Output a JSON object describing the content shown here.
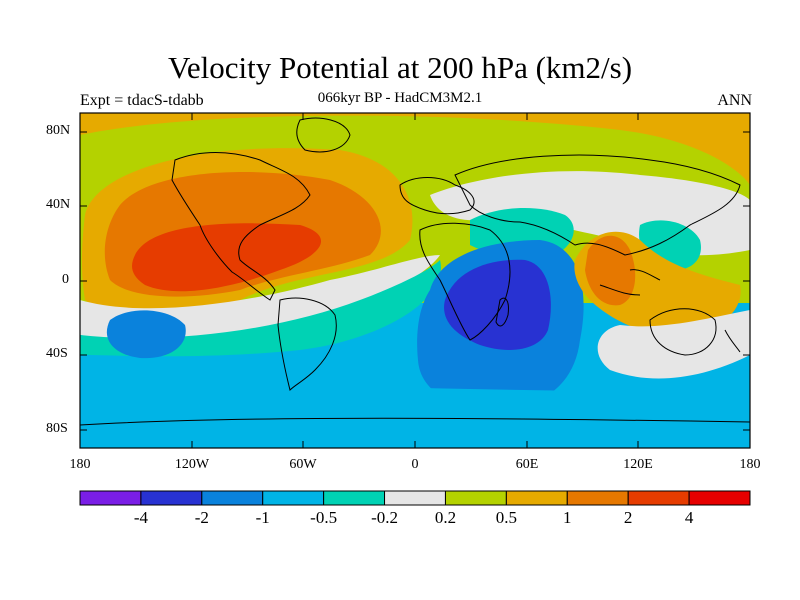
{
  "header": {
    "title": "Velocity Potential at 200 hPa (km2/s)",
    "experiment": "Expt = tdacS-tdabb",
    "subtitle": "066kyr BP - HadCM3M2.1",
    "season": "ANN"
  },
  "axes": {
    "lat_ticks": [
      "80N",
      "40N",
      "0",
      "40S",
      "80S"
    ],
    "lon_ticks": [
      "180",
      "120W",
      "60W",
      "0",
      "60E",
      "120E",
      "180"
    ]
  },
  "colorbar": {
    "colors": [
      "#7a1ee6",
      "#2832d2",
      "#0a82dc",
      "#00b4e6",
      "#00d2b4",
      "#e6e6e6",
      "#b4d200",
      "#e6aa00",
      "#e67800",
      "#e63c00",
      "#e60000"
    ],
    "labels": [
      "-4",
      "-2",
      "-1",
      "-0.5",
      "-0.2",
      "0.2",
      "0.5",
      "1",
      "2",
      "4"
    ]
  },
  "map_colors": {
    "land_outline": "#000000",
    "frame": "#000000"
  }
}
